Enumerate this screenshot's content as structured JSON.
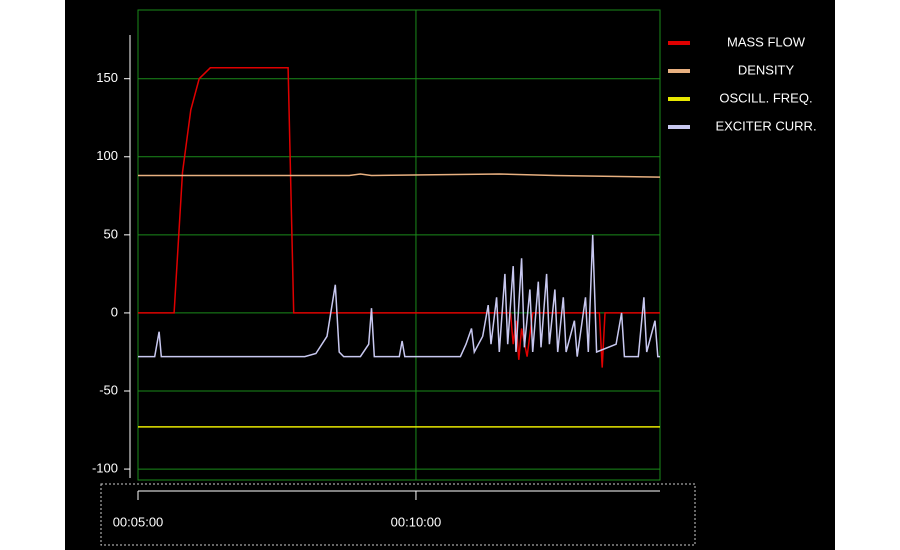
{
  "chart_data": {
    "type": "line",
    "legend": "right",
    "grid": true,
    "ylim": [
      -107,
      194
    ],
    "yticks": [
      -100,
      -50,
      0,
      50,
      100,
      150
    ],
    "xlim": [
      5,
      14.39
    ],
    "xticks": [
      {
        "value": 5,
        "label": "00:05:00"
      },
      {
        "value": 10,
        "label": "00:10:00"
      }
    ],
    "series": [
      {
        "name": "MASS FLOW",
        "color": "#e00000",
        "x": [
          5.0,
          5.65,
          5.8,
          5.95,
          6.1,
          6.3,
          7.7,
          7.8,
          11.7,
          11.75,
          11.8,
          11.85,
          11.9,
          12.0,
          12.1,
          13.3,
          13.35,
          13.4,
          14.39
        ],
        "values": [
          0,
          0,
          90,
          130,
          150,
          157,
          157,
          0,
          0,
          -20,
          -5,
          -30,
          -10,
          -28,
          0,
          0,
          -35,
          0,
          0
        ]
      },
      {
        "name": "DENSITY",
        "color": "#e8b080",
        "x": [
          5.0,
          8.8,
          9.0,
          9.2,
          11.5,
          12.5,
          14.39
        ],
        "values": [
          88,
          88,
          89,
          88,
          89,
          88,
          87
        ]
      },
      {
        "name": "OSCILL. FREQ.",
        "color": "#e8e800",
        "x": [
          5.0,
          14.39
        ],
        "values": [
          -73,
          -73
        ]
      },
      {
        "name": "EXCITER CURR.",
        "color": "#c8c8f0",
        "x": [
          5.0,
          5.3,
          5.38,
          5.42,
          8.0,
          8.2,
          8.4,
          8.55,
          8.62,
          8.7,
          9.0,
          9.15,
          9.2,
          9.25,
          9.7,
          9.75,
          9.8,
          10.8,
          10.9,
          11.0,
          11.05,
          11.2,
          11.3,
          11.35,
          11.45,
          11.5,
          11.6,
          11.65,
          11.75,
          11.8,
          11.9,
          11.95,
          12.05,
          12.1,
          12.2,
          12.25,
          12.35,
          12.4,
          12.5,
          12.55,
          12.65,
          12.7,
          12.85,
          12.9,
          13.05,
          13.1,
          13.18,
          13.25,
          13.6,
          13.7,
          13.75,
          14.0,
          14.1,
          14.15,
          14.3,
          14.35,
          14.39
        ],
        "values": [
          -28,
          -28,
          -12,
          -28,
          -28,
          -26,
          -15,
          18,
          -25,
          -28,
          -28,
          -20,
          3,
          -28,
          -28,
          -18,
          -28,
          -28,
          -20,
          -10,
          -25,
          -15,
          5,
          -20,
          10,
          -25,
          25,
          -20,
          30,
          -25,
          35,
          -22,
          15,
          -25,
          20,
          -22,
          25,
          -20,
          15,
          -25,
          10,
          -25,
          -5,
          -28,
          10,
          -25,
          50,
          -25,
          -20,
          0,
          -28,
          -28,
          10,
          -25,
          -5,
          -28,
          -28
        ]
      }
    ]
  }
}
